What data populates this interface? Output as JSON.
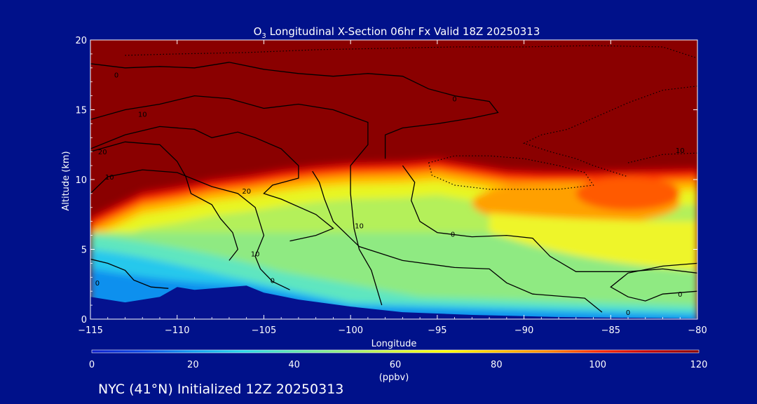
{
  "colors": {
    "background": "#00118a",
    "text": "#ffffff",
    "contour": "#000000",
    "terrain": "#05128f",
    "colormap": [
      "#0b1ccc",
      "#0a49e6",
      "#10a0f0",
      "#28d8e8",
      "#5fe6b0",
      "#96ee7c",
      "#d6f53c",
      "#ffff00",
      "#ffc400",
      "#ff8a00",
      "#ff2a00",
      "#c40000",
      "#8a0000"
    ]
  },
  "footer": {
    "label": "NYC (41°N) Initialized 12Z 20250313"
  },
  "chart_data": {
    "type": "heatmap",
    "title_prefix": "O",
    "title_sub": "3",
    "title_suffix": " Longitudinal X-Section 06hr  Fx Valid 18Z 20250313",
    "xlabel": "Longitude",
    "ylabel": "Altitude (km)",
    "xlim": [
      -115,
      -80
    ],
    "ylim": [
      0,
      20
    ],
    "xticks": [
      -115,
      -110,
      -105,
      -100,
      -95,
      -90,
      -85,
      -80
    ],
    "xtick_labels": [
      "−115",
      "−110",
      "−105",
      "−100",
      "−95",
      "−90",
      "−85",
      "−80"
    ],
    "yticks": [
      0,
      5,
      10,
      15,
      20
    ],
    "ytick_labels": [
      "0",
      "5",
      "10",
      "15",
      "20"
    ],
    "colorbar": {
      "min": 0,
      "max": 120,
      "ticks": [
        0,
        20,
        40,
        60,
        80,
        100,
        120
      ],
      "tick_labels": [
        "0",
        "20",
        "40",
        "60",
        "80",
        "100",
        "120"
      ],
      "units": "(ppbv)"
    },
    "ozone_field": {
      "description_units": "ppbv",
      "tropopause_height_km": [
        [
          -115,
          7.0
        ],
        [
          -112,
          8.8
        ],
        [
          -110,
          9.2
        ],
        [
          -108,
          9.7
        ],
        [
          -106,
          10.0
        ],
        [
          -104,
          10.4
        ],
        [
          -102,
          10.7
        ],
        [
          -100,
          10.9
        ],
        [
          -97,
          11.0
        ],
        [
          -95,
          11.2
        ],
        [
          -93,
          10.8
        ],
        [
          -91,
          10.4
        ],
        [
          -89,
          10.3
        ],
        [
          -86,
          10.3
        ],
        [
          -83,
          10.4
        ],
        [
          -80,
          10.5
        ]
      ],
      "upper_troposphere_ppbv": 70,
      "lower_troposphere_ppbv": 55,
      "boundary_layer_ppbv": 35,
      "stratosphere_ppbv": 120,
      "elevated_feature": {
        "lon_range": [
          -92,
          -80
        ],
        "alt_range": [
          7.5,
          9.5
        ],
        "ppbv": 95
      }
    },
    "terrain": [
      [
        -115,
        1.6
      ],
      [
        -113,
        1.2
      ],
      [
        -111,
        1.6
      ],
      [
        -110,
        2.3
      ],
      [
        -109,
        2.1
      ],
      [
        -107,
        2.3
      ],
      [
        -106,
        2.4
      ],
      [
        -105,
        1.9
      ],
      [
        -103,
        1.4
      ],
      [
        -100,
        0.9
      ],
      [
        -97,
        0.5
      ],
      [
        -93,
        0.3
      ],
      [
        -88,
        0.15
      ],
      [
        -84,
        0.1
      ],
      [
        -80,
        0.05
      ]
    ],
    "contour_labels": [
      {
        "text": "0",
        "lon": -113.5,
        "alt": 17.3
      },
      {
        "text": "10",
        "lon": -112.0,
        "alt": 14.5
      },
      {
        "text": "20",
        "lon": -114.3,
        "alt": 11.8
      },
      {
        "text": "10",
        "lon": -113.9,
        "alt": 10.0
      },
      {
        "text": "20",
        "lon": -106.0,
        "alt": 9.0
      },
      {
        "text": "10",
        "lon": -99.5,
        "alt": 6.5
      },
      {
        "text": "10",
        "lon": -105.5,
        "alt": 4.5
      },
      {
        "text": "0",
        "lon": -104.5,
        "alt": 2.6
      },
      {
        "text": "0",
        "lon": -114.6,
        "alt": 2.4
      },
      {
        "text": "0",
        "lon": -94.0,
        "alt": 15.6
      },
      {
        "text": "0",
        "lon": -94.1,
        "alt": 5.9
      },
      {
        "text": "10",
        "lon": -81.0,
        "alt": 11.9
      },
      {
        "text": "0",
        "lon": -81.0,
        "alt": 1.6
      },
      {
        "text": "0",
        "lon": -84.0,
        "alt": 0.3
      }
    ]
  }
}
